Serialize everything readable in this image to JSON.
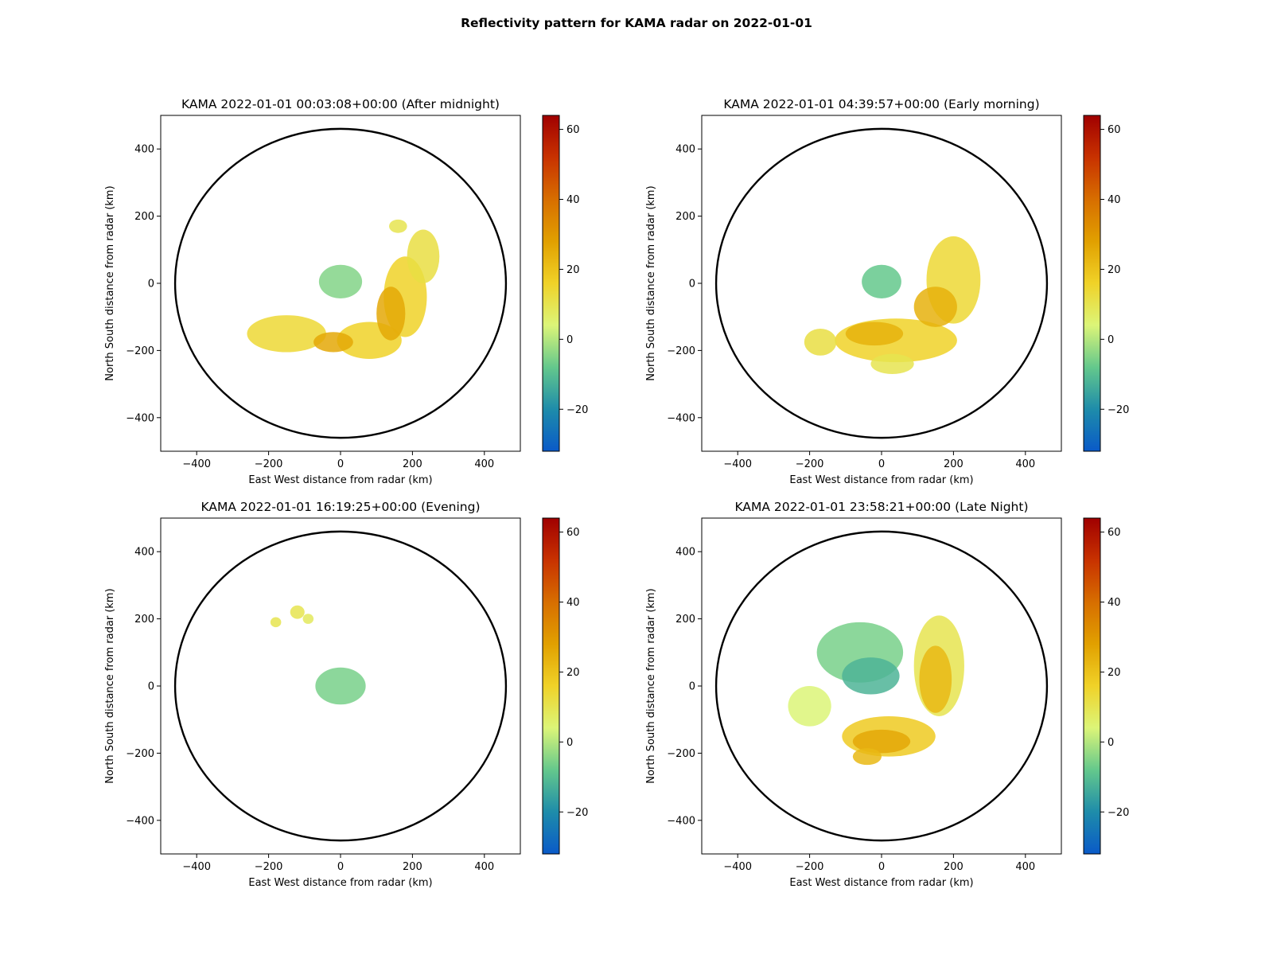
{
  "figure": {
    "title": "Reflectivity pattern for KAMA radar on 2022-01-01"
  },
  "chart_data": [
    {
      "type": "heatmap",
      "title": "KAMA 2022-01-01 00:03:08+00:00 (After midnight)",
      "xlabel": "East West distance from radar (km)",
      "ylabel": "North South distance from radar (km)",
      "xlim": [
        -500,
        500
      ],
      "ylim": [
        -500,
        500
      ],
      "xticks": [
        -400,
        -200,
        0,
        200,
        400
      ],
      "yticks": [
        -400,
        -200,
        0,
        200,
        400
      ],
      "range_ring_km": 460,
      "colorbar": {
        "min": -32,
        "max": 64,
        "ticks": [
          -20,
          0,
          20,
          40,
          60
        ],
        "colormap": "homeyer-rainbow"
      },
      "echoes": [
        {
          "x": 0,
          "y": 5,
          "rx": 60,
          "ry": 50,
          "dbz": -5,
          "desc": "ground clutter near radar"
        },
        {
          "x": -150,
          "y": -150,
          "rx": 110,
          "ry": 55,
          "dbz": 14
        },
        {
          "x": 80,
          "y": -170,
          "rx": 90,
          "ry": 55,
          "dbz": 16
        },
        {
          "x": 180,
          "y": -40,
          "rx": 60,
          "ry": 120,
          "dbz": 16
        },
        {
          "x": 230,
          "y": 80,
          "rx": 45,
          "ry": 80,
          "dbz": 12
        },
        {
          "x": 140,
          "y": -90,
          "rx": 40,
          "ry": 80,
          "dbz": 26
        },
        {
          "x": -20,
          "y": -175,
          "rx": 55,
          "ry": 30,
          "dbz": 26
        },
        {
          "x": 160,
          "y": 170,
          "rx": 25,
          "ry": 20,
          "dbz": 10
        }
      ]
    },
    {
      "type": "heatmap",
      "title": "KAMA 2022-01-01 04:39:57+00:00 (Early morning)",
      "xlabel": "East West distance from radar (km)",
      "ylabel": "North South distance from radar (km)",
      "xlim": [
        -500,
        500
      ],
      "ylim": [
        -500,
        500
      ],
      "xticks": [
        -400,
        -200,
        0,
        200,
        400
      ],
      "yticks": [
        -400,
        -200,
        0,
        200,
        400
      ],
      "range_ring_km": 460,
      "colorbar": {
        "min": -32,
        "max": 64,
        "ticks": [
          -20,
          0,
          20,
          40,
          60
        ],
        "colormap": "homeyer-rainbow"
      },
      "echoes": [
        {
          "x": 0,
          "y": 5,
          "rx": 55,
          "ry": 50,
          "dbz": -8,
          "desc": "ground clutter near radar"
        },
        {
          "x": 40,
          "y": -170,
          "rx": 170,
          "ry": 65,
          "dbz": 16
        },
        {
          "x": 200,
          "y": 10,
          "rx": 75,
          "ry": 130,
          "dbz": 14
        },
        {
          "x": 150,
          "y": -70,
          "rx": 60,
          "ry": 60,
          "dbz": 24
        },
        {
          "x": -20,
          "y": -150,
          "rx": 80,
          "ry": 35,
          "dbz": 24
        },
        {
          "x": -170,
          "y": -175,
          "rx": 45,
          "ry": 40,
          "dbz": 12
        },
        {
          "x": 30,
          "y": -240,
          "rx": 60,
          "ry": 30,
          "dbz": 10
        }
      ]
    },
    {
      "type": "heatmap",
      "title": "KAMA 2022-01-01 16:19:25+00:00 (Evening)",
      "xlabel": "East West distance from radar (km)",
      "ylabel": "North South distance from radar (km)",
      "xlim": [
        -500,
        500
      ],
      "ylim": [
        -500,
        500
      ],
      "xticks": [
        -400,
        -200,
        0,
        200,
        400
      ],
      "yticks": [
        -400,
        -200,
        0,
        200,
        400
      ],
      "range_ring_km": 460,
      "colorbar": {
        "min": -32,
        "max": 64,
        "ticks": [
          -20,
          0,
          20,
          40,
          60
        ],
        "colormap": "homeyer-rainbow"
      },
      "echoes": [
        {
          "x": 0,
          "y": 0,
          "rx": 70,
          "ry": 55,
          "dbz": -6,
          "desc": "ground clutter near radar"
        },
        {
          "x": -180,
          "y": 190,
          "rx": 15,
          "ry": 15,
          "dbz": 10
        },
        {
          "x": -120,
          "y": 220,
          "rx": 20,
          "ry": 20,
          "dbz": 10
        },
        {
          "x": -90,
          "y": 200,
          "rx": 15,
          "ry": 15,
          "dbz": 8
        }
      ]
    },
    {
      "type": "heatmap",
      "title": "KAMA 2022-01-01 23:58:21+00:00 (Late Night)",
      "xlabel": "East West distance from radar (km)",
      "ylabel": "North South distance from radar (km)",
      "xlim": [
        -500,
        500
      ],
      "ylim": [
        -500,
        500
      ],
      "xticks": [
        -400,
        -200,
        0,
        200,
        400
      ],
      "yticks": [
        -400,
        -200,
        0,
        200,
        400
      ],
      "range_ring_km": 460,
      "colorbar": {
        "min": -32,
        "max": 64,
        "ticks": [
          -20,
          0,
          20,
          40,
          60
        ],
        "colormap": "homeyer-rainbow"
      },
      "echoes": [
        {
          "x": -60,
          "y": 100,
          "rx": 120,
          "ry": 90,
          "dbz": -6
        },
        {
          "x": -30,
          "y": 30,
          "rx": 80,
          "ry": 55,
          "dbz": -12
        },
        {
          "x": 160,
          "y": 60,
          "rx": 70,
          "ry": 150,
          "dbz": 10
        },
        {
          "x": 150,
          "y": 20,
          "rx": 45,
          "ry": 100,
          "dbz": 22
        },
        {
          "x": 20,
          "y": -150,
          "rx": 130,
          "ry": 60,
          "dbz": 18
        },
        {
          "x": 0,
          "y": -165,
          "rx": 80,
          "ry": 35,
          "dbz": 26
        },
        {
          "x": -200,
          "y": -60,
          "rx": 60,
          "ry": 60,
          "dbz": 4
        },
        {
          "x": -40,
          "y": -210,
          "rx": 40,
          "ry": 25,
          "dbz": 22
        }
      ]
    }
  ]
}
